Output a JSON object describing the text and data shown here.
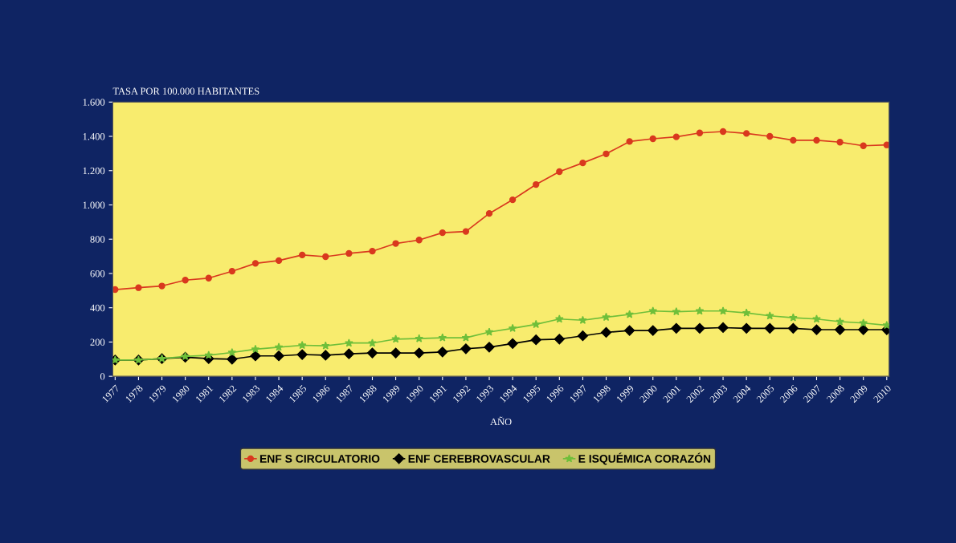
{
  "chart_data": {
    "type": "line",
    "ylabel": "TASA POR 100.000 HABITANTES",
    "xlabel": "AÑO",
    "categories": [
      "1977",
      "1978",
      "1979",
      "1980",
      "1981",
      "1982",
      "1983",
      "1984",
      "1985",
      "1986",
      "1987",
      "1988",
      "1989",
      "1990",
      "1991",
      "1992",
      "1993",
      "1994",
      "1995",
      "1996",
      "1997",
      "1998",
      "1999",
      "2000",
      "2001",
      "2002",
      "2003",
      "2004",
      "2005",
      "2006",
      "2007",
      "2008",
      "2009",
      "2010"
    ],
    "series": [
      {
        "name": "ENF S CIRCULATORIO",
        "color": "#d9381e",
        "marker": "circle",
        "values": [
          506,
          517,
          527,
          561,
          573,
          613,
          659,
          675,
          708,
          698,
          717,
          730,
          775,
          795,
          838,
          845,
          950,
          1030,
          1119,
          1194,
          1245,
          1298,
          1370,
          1386,
          1397,
          1420,
          1428,
          1417,
          1400,
          1377,
          1377,
          1366,
          1345,
          1350
        ]
      },
      {
        "name": "ENF CEREBROVASCULAR",
        "color": "#000000",
        "marker": "diamond",
        "values": [
          95,
          95,
          103,
          111,
          103,
          100,
          119,
          119,
          127,
          123,
          131,
          136,
          136,
          136,
          142,
          161,
          170,
          191,
          213,
          217,
          236,
          256,
          267,
          267,
          280,
          280,
          284,
          280,
          280,
          280,
          272,
          272,
          272,
          272
        ]
      },
      {
        "name": "E ISQUÉMICA CORAZÓN",
        "color": "#6fbf3a",
        "marker": "star",
        "values": [
          95,
          95,
          103,
          116,
          123,
          139,
          158,
          170,
          181,
          178,
          194,
          194,
          217,
          220,
          225,
          225,
          258,
          280,
          303,
          334,
          327,
          345,
          361,
          381,
          377,
          381,
          381,
          370,
          353,
          342,
          334,
          319,
          311,
          298
        ]
      }
    ],
    "ylim": [
      0,
      1600
    ],
    "yticks": [
      0,
      200,
      400,
      600,
      800,
      {
        "value": 1000,
        "label": "1.000"
      },
      {
        "value": 1200,
        "label": "1.200"
      },
      {
        "value": 1400,
        "label": "1.400"
      },
      {
        "value": 1600,
        "label": "1.600"
      }
    ],
    "grid": false,
    "legend": "bottom"
  }
}
